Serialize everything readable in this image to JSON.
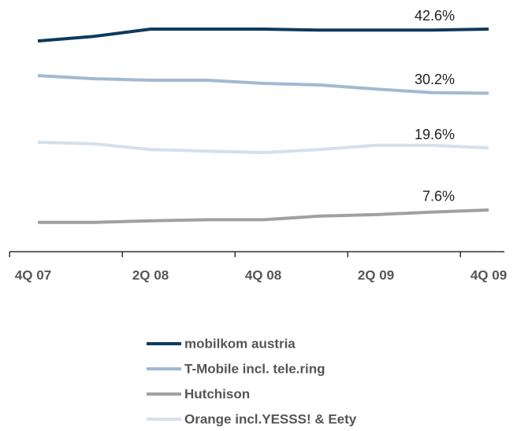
{
  "chart_data": {
    "type": "line",
    "categories": [
      "4Q 07",
      null,
      "2Q 08",
      null,
      "4Q 08",
      null,
      "2Q 09",
      null,
      "4Q 09"
    ],
    "series": [
      {
        "name": "mobilkom austria",
        "color": "#0e3a5e",
        "values": [
          40.3,
          41.2,
          42.6,
          42.6,
          42.6,
          42.4,
          42.4,
          42.4,
          42.6
        ],
        "value_labels": [
          null,
          null,
          null,
          null,
          null,
          null,
          null,
          null,
          "42.6%"
        ]
      },
      {
        "name": "T-Mobile incl. tele.ring",
        "color": "#a3b9d0",
        "values": [
          33.6,
          33.0,
          32.7,
          32.7,
          32.1,
          31.8,
          31.0,
          30.3,
          30.2
        ],
        "value_labels": [
          null,
          null,
          null,
          null,
          null,
          null,
          null,
          null,
          "30.2%"
        ]
      },
      {
        "name": "Hutchison",
        "color": "#a0a0a0",
        "values": [
          5.2,
          5.2,
          5.5,
          5.7,
          5.7,
          6.4,
          6.7,
          7.2,
          7.6
        ],
        "value_labels": [
          null,
          null,
          null,
          null,
          null,
          null,
          null,
          null,
          "7.6%"
        ]
      },
      {
        "name": "Orange incl.YESSS! & Eety",
        "color": "#d5e0ec",
        "values": [
          20.7,
          20.4,
          19.3,
          19.0,
          18.7,
          19.3,
          20.1,
          20.1,
          19.6
        ],
        "value_labels": [
          null,
          null,
          null,
          null,
          null,
          null,
          null,
          null,
          "19.6%"
        ]
      }
    ]
  }
}
